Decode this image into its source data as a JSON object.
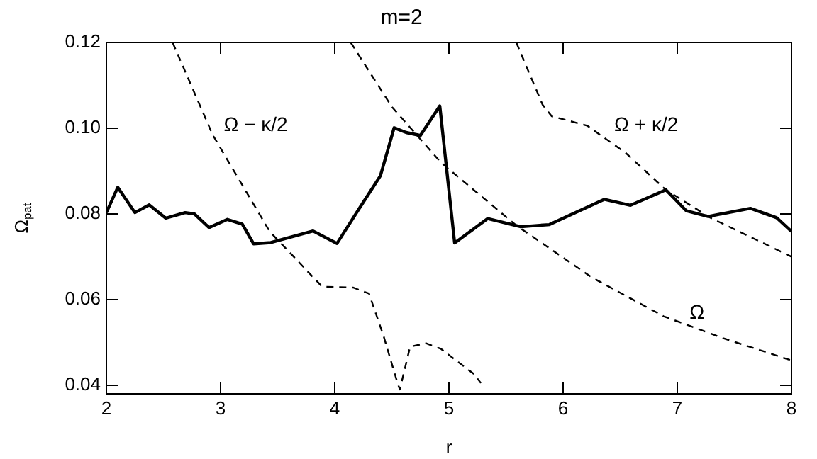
{
  "chart_data": {
    "type": "line",
    "title": "m=2",
    "xlabel": "r",
    "ylabel": "Ω$_{pat}$",
    "xlim": [
      2,
      8
    ],
    "xticks": [
      2,
      3,
      4,
      5,
      6,
      7,
      8
    ],
    "ylim": [
      0.038,
      0.12
    ],
    "yticks": [
      {
        "value": 0.04,
        "label": "0.04"
      },
      {
        "value": 0.06,
        "label": "0.06"
      },
      {
        "value": 0.08,
        "label": "0.08"
      },
      {
        "value": 0.1,
        "label": "0.10"
      },
      {
        "value": 0.12,
        "label": "0.12"
      }
    ],
    "grid": false,
    "legend": false,
    "marker": "none",
    "series": [
      {
        "color": "#000000",
        "line_style": "solid",
        "x": [
          2,
          2.1,
          2.25,
          2.375,
          2.52,
          2.69,
          2.77,
          2.9,
          3.06,
          3.19,
          3.29,
          3.44,
          3.81,
          4.02,
          4.23,
          4.4,
          4.52,
          4.625,
          4.75,
          4.92,
          5.05,
          5.34,
          5.63,
          5.88,
          6.36,
          6.59,
          6.9,
          7.08,
          7.27,
          7.64,
          7.87,
          8
        ],
        "values": [
          0.0803,
          0.0862,
          0.0803,
          0.0821,
          0.079,
          0.0803,
          0.08,
          0.0768,
          0.0787,
          0.0776,
          0.073,
          0.0733,
          0.076,
          0.0731,
          0.0819,
          0.0889,
          0.1001,
          0.099,
          0.0983,
          0.1052,
          0.0732,
          0.0789,
          0.077,
          0.0775,
          0.0834,
          0.082,
          0.0856,
          0.0807,
          0.0794,
          0.0813,
          0.0791,
          0.0759
        ]
      },
      {
        "name": "Ω",
        "color": "#000000",
        "line_style": "dashed",
        "x": [
          4.14,
          4.5,
          4.93,
          5.59,
          6.25,
          6.88,
          7.4,
          8
        ],
        "values": [
          0.12,
          0.105,
          0.092,
          0.0773,
          0.0652,
          0.0561,
          0.051,
          0.0458
        ]
      },
      {
        "name": "Ω − κ/2",
        "color": "#000000",
        "line_style": "dashed",
        "x": [
          2.58,
          2.93,
          3.43,
          3.89,
          4.16,
          4.3,
          4.43,
          4.55,
          4.57,
          4.66,
          4.8,
          4.93,
          5.22,
          5.28
        ],
        "values": [
          0.12,
          0.0985,
          0.0759,
          0.063,
          0.0628,
          0.0614,
          0.0513,
          0.0405,
          0.039,
          0.049,
          0.0498,
          0.0485,
          0.0426,
          0.0405
        ]
      },
      {
        "name": "Ω + κ/2",
        "color": "#000000",
        "line_style": "dashed",
        "x": [
          5.59,
          5.82,
          5.9,
          6.21,
          6.55,
          6.9,
          7.29,
          8
        ],
        "values": [
          0.12,
          0.1055,
          0.1028,
          0.1006,
          0.0942,
          0.0856,
          0.0791,
          0.07
        ]
      }
    ]
  }
}
